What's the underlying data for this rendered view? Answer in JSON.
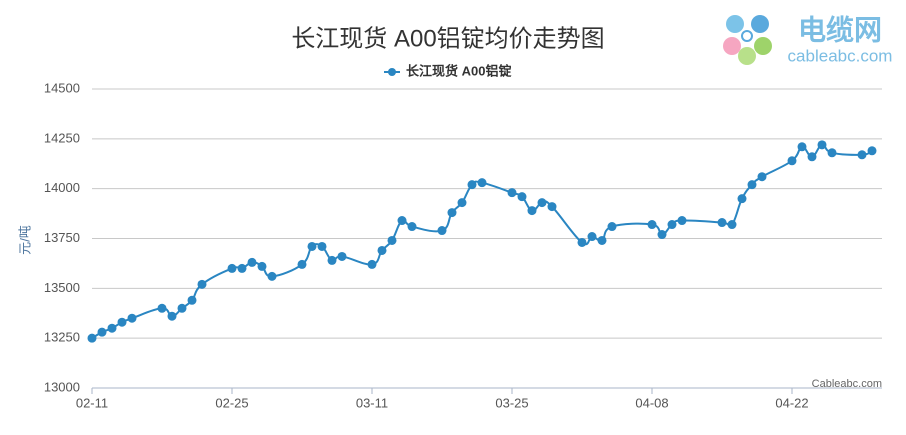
{
  "chart_data": {
    "type": "line",
    "title": "长江现货 A00铝锭均价走势图",
    "y_label": "元/吨",
    "credit": "Cableabc.com",
    "logo": {
      "name": "电缆网",
      "url": "cableabc.com"
    },
    "x": [
      "02-11",
      "02-12",
      "02-13",
      "02-14",
      "02-15",
      "02-18",
      "02-19",
      "02-20",
      "02-21",
      "02-22",
      "02-25",
      "02-26",
      "02-27",
      "02-28",
      "03-01",
      "03-04",
      "03-05",
      "03-06",
      "03-07",
      "03-08",
      "03-11",
      "03-12",
      "03-13",
      "03-14",
      "03-15",
      "03-18",
      "03-19",
      "03-20",
      "03-21",
      "03-22",
      "03-25",
      "03-26",
      "03-27",
      "03-28",
      "03-29",
      "04-01",
      "04-02",
      "04-03",
      "04-04",
      "04-08",
      "04-09",
      "04-10",
      "04-11",
      "04-15",
      "04-16",
      "04-17",
      "04-18",
      "04-19",
      "04-22",
      "04-23",
      "04-24",
      "04-25",
      "04-26",
      "04-29",
      "04-30"
    ],
    "series": [
      {
        "name": "长江现货 A00铝锭",
        "color": "#2a86c2",
        "values": [
          13250,
          13280,
          13300,
          13330,
          13350,
          13400,
          13360,
          13400,
          13440,
          13520,
          13600,
          13600,
          13630,
          13610,
          13560,
          13620,
          13710,
          13710,
          13640,
          13660,
          13620,
          13690,
          13740,
          13840,
          13810,
          13790,
          13880,
          13930,
          14020,
          14030,
          13980,
          13960,
          13890,
          13930,
          13910,
          13730,
          13760,
          13740,
          13810,
          13820,
          13770,
          13820,
          13840,
          13830,
          13820,
          13950,
          14020,
          14060,
          14140,
          14210,
          14160,
          14220,
          14180,
          14170,
          14190
        ]
      }
    ],
    "xlim": [
      "02-11",
      "05-01"
    ],
    "xticks": [
      "02-11",
      "02-25",
      "03-11",
      "03-25",
      "04-08",
      "04-22"
    ],
    "ylim": [
      13000,
      14500
    ],
    "yticks": [
      13000,
      13250,
      13500,
      13750,
      14000,
      14250,
      14500
    ],
    "grid": true,
    "legend": "top"
  }
}
